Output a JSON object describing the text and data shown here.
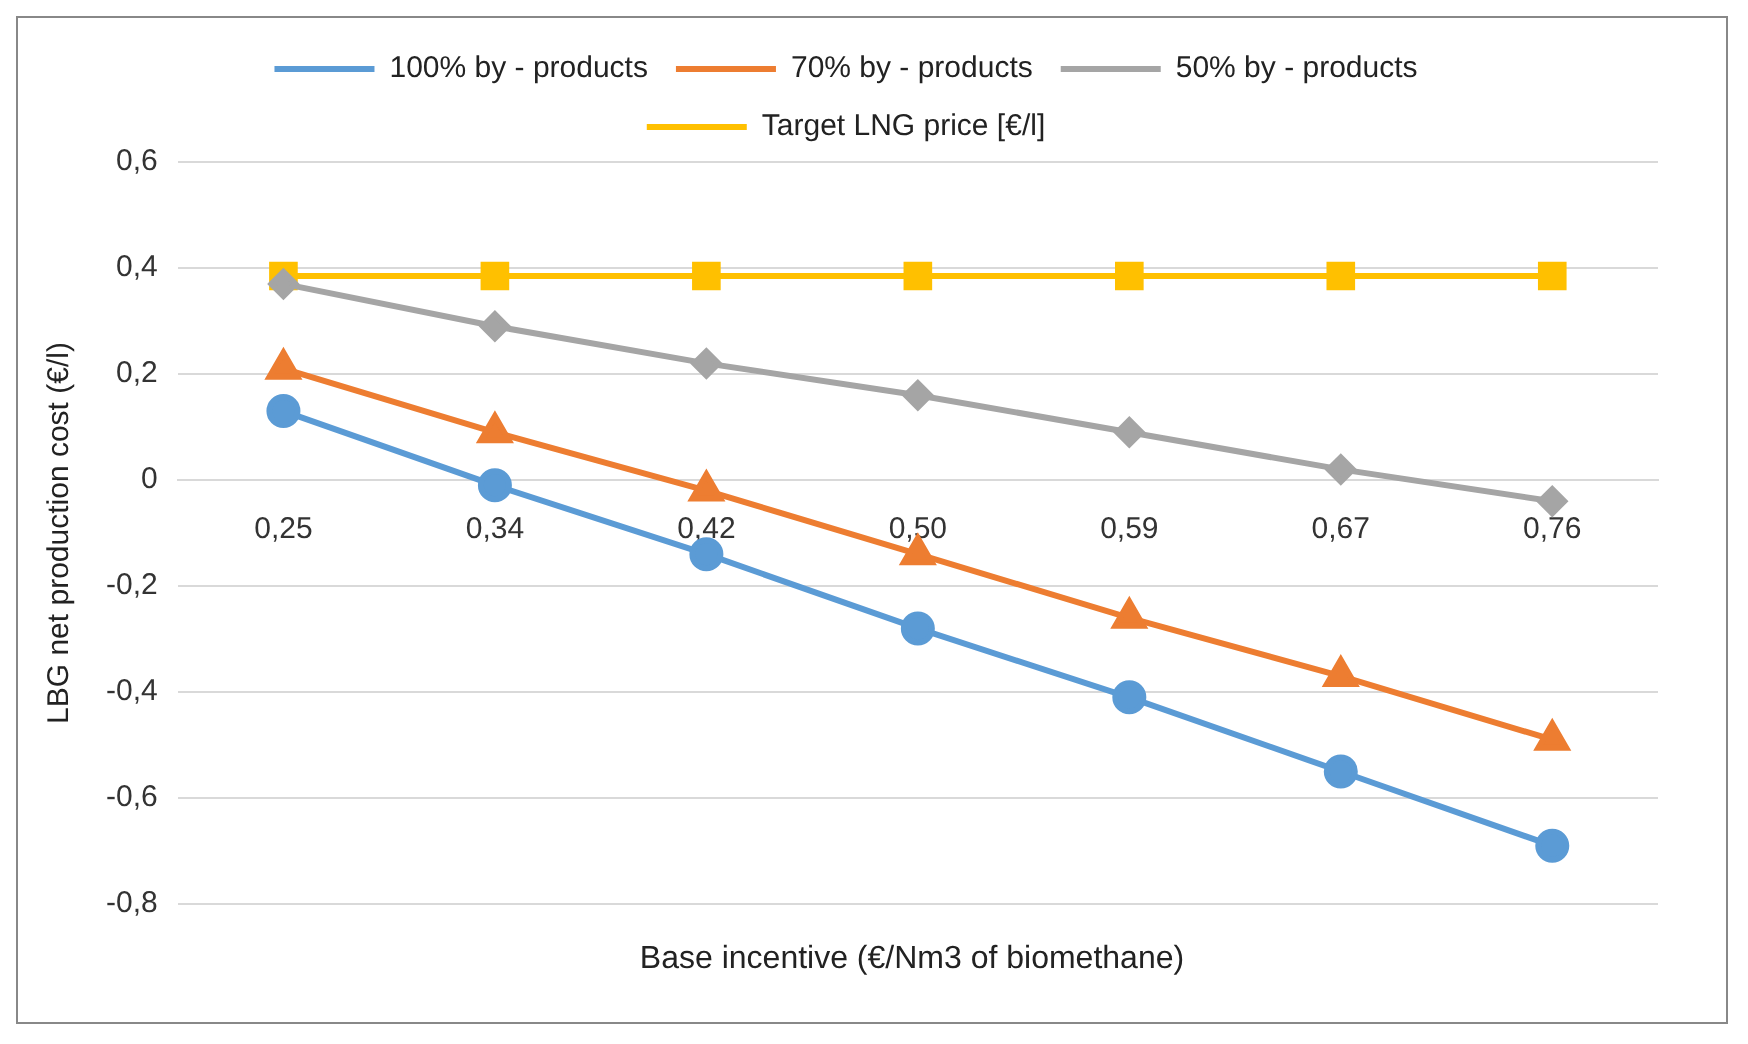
{
  "chart_data": {
    "type": "line",
    "xlabel": "Base incentive (€/Nm3 of biomethane)",
    "ylabel": "LBG net production cost (€/l)",
    "categories": [
      "0,25",
      "0,34",
      "0,42",
      "0,50",
      "0,59",
      "0,67",
      "0,76"
    ],
    "series": [
      {
        "name": "100% by - products",
        "color": "#5b9bd5",
        "marker": "circle",
        "values": [
          0.13,
          -0.01,
          -0.14,
          -0.28,
          -0.41,
          -0.55,
          -0.69
        ]
      },
      {
        "name": "70% by - products",
        "color": "#ed7d31",
        "marker": "triangle",
        "values": [
          0.21,
          0.09,
          -0.02,
          -0.14,
          -0.26,
          -0.37,
          -0.49
        ]
      },
      {
        "name": "50% by - products",
        "color": "#a5a5a5",
        "marker": "diamond",
        "values": [
          0.37,
          0.29,
          0.22,
          0.16,
          0.09,
          0.02,
          -0.04
        ]
      },
      {
        "name": "Target LNG price [€/l]",
        "color": "#ffc000",
        "marker": "square",
        "values": [
          0.385,
          0.385,
          0.385,
          0.385,
          0.385,
          0.385,
          0.385
        ]
      }
    ],
    "ylim": [
      -0.8,
      0.6
    ],
    "yticks": [
      {
        "value": -0.8,
        "label": "-0,8"
      },
      {
        "value": -0.6,
        "label": "-0,6"
      },
      {
        "value": -0.4,
        "label": "-0,4"
      },
      {
        "value": -0.2,
        "label": "-0,2"
      },
      0,
      {
        "value": 0.2,
        "label": "0,2"
      },
      {
        "value": 0.4,
        "label": "0,4"
      },
      {
        "value": 0.6,
        "label": "0,6"
      }
    ],
    "grid": "y",
    "legend": "top",
    "line_style": "solid"
  }
}
